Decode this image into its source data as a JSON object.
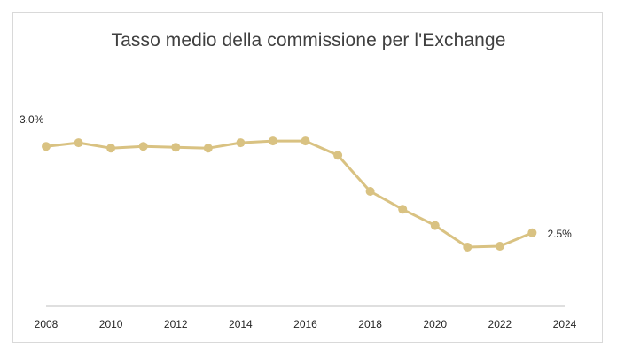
{
  "chart_data": {
    "type": "line",
    "title": "Tasso medio della commissione per l'Exchange",
    "xlabel": "",
    "ylabel": "",
    "x": [
      2008,
      2009,
      2010,
      2011,
      2012,
      2013,
      2014,
      2015,
      2016,
      2017,
      2018,
      2019,
      2020,
      2021,
      2022,
      2023
    ],
    "series": [
      {
        "values": [
          2.95,
          2.97,
          2.94,
          2.95,
          2.945,
          2.94,
          2.97,
          2.98,
          2.98,
          2.9,
          2.7,
          2.6,
          2.51,
          2.39,
          2.395,
          2.47
        ]
      }
    ],
    "xticks": [
      "2008",
      "2010",
      "2012",
      "2014",
      "2016",
      "2018",
      "2020",
      "2022",
      "2024"
    ],
    "xlim": [
      2008,
      2024
    ],
    "data_labels": [
      {
        "index": 0,
        "text": "3.0%",
        "position": "above-left"
      },
      {
        "index": 15,
        "text": "2.5%",
        "position": "right"
      }
    ],
    "line_color": "#d9c282",
    "axis_color": "#bfbfbf",
    "grid": false,
    "legend": "none"
  }
}
